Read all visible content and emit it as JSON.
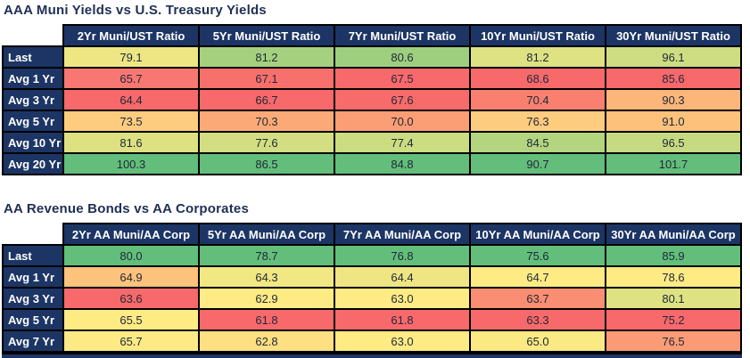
{
  "page": {
    "background": "#FFFFFF",
    "header_bg": "#1C3565",
    "header_text_color": "#FFFFFF",
    "title_color": "#1F2F55",
    "value_text_color": "#1E2838",
    "border_color": "#000000",
    "heat_scale": {
      "low": "#F8696B",
      "mid": "#FFEB84",
      "high": "#63BE7B"
    }
  },
  "tables": [
    {
      "title": "AAA Muni Yields vs U.S. Treasury Yields",
      "columns": [
        "2Yr Muni/UST Ratio",
        "5Yr Muni/UST Ratio",
        "7Yr Muni/UST Ratio",
        "10Yr Muni/UST Ratio",
        "30Yr Muni/UST Ratio"
      ],
      "rows": [
        {
          "label": "Last",
          "cells": [
            {
              "value": "79.1",
              "color": "#EDE683"
            },
            {
              "value": "81.2",
              "color": "#A5D17F"
            },
            {
              "value": "80.6",
              "color": "#9ECF7E"
            },
            {
              "value": "81.2",
              "color": "#DFE282"
            },
            {
              "value": "96.1",
              "color": "#CEDD81"
            }
          ]
        },
        {
          "label": "Avg 1 Yr",
          "cells": [
            {
              "value": "65.7",
              "color": "#F97772"
            },
            {
              "value": "67.1",
              "color": "#F8706C"
            },
            {
              "value": "67.5",
              "color": "#F8696B"
            },
            {
              "value": "68.6",
              "color": "#F8696B"
            },
            {
              "value": "85.6",
              "color": "#F8696B"
            }
          ]
        },
        {
          "label": "Avg 3 Yr",
          "cells": [
            {
              "value": "64.4",
              "color": "#F8696B"
            },
            {
              "value": "66.7",
              "color": "#F8696B"
            },
            {
              "value": "67.6",
              "color": "#F86B6B"
            },
            {
              "value": "70.4",
              "color": "#F9806F"
            },
            {
              "value": "90.3",
              "color": "#FCB67A"
            }
          ]
        },
        {
          "label": "Avg 5 Yr",
          "cells": [
            {
              "value": "73.5",
              "color": "#FDCC7E"
            },
            {
              "value": "70.3",
              "color": "#FBAA77"
            },
            {
              "value": "70.0",
              "color": "#FB9D75"
            },
            {
              "value": "76.3",
              "color": "#FDCC7E"
            },
            {
              "value": "91.0",
              "color": "#FDC17C"
            }
          ]
        },
        {
          "label": "Avg 10 Yr",
          "cells": [
            {
              "value": "81.6",
              "color": "#DDE182"
            },
            {
              "value": "77.6",
              "color": "#D2DE81"
            },
            {
              "value": "77.4",
              "color": "#CBDC81"
            },
            {
              "value": "84.5",
              "color": "#B4D580"
            },
            {
              "value": "96.5",
              "color": "#C6DB81"
            }
          ]
        },
        {
          "label": "Avg 20 Yr",
          "cells": [
            {
              "value": "100.3",
              "color": "#63BE7B"
            },
            {
              "value": "86.5",
              "color": "#63BE7B"
            },
            {
              "value": "84.8",
              "color": "#63BE7B"
            },
            {
              "value": "90.7",
              "color": "#63BE7B"
            },
            {
              "value": "101.7",
              "color": "#63BE7B"
            }
          ]
        }
      ]
    },
    {
      "title": "AA Revenue Bonds vs AA Corporates",
      "columns": [
        "2Yr AA Muni/AA Corp",
        "5Yr AA Muni/AA Corp",
        "7Yr AA Muni/AA Corp",
        "10Yr AA Muni/AA Corp",
        "30Yr AA Muni/AA Corp"
      ],
      "rows": [
        {
          "label": "Last",
          "cells": [
            {
              "value": "80.0",
              "color": "#63BE7B"
            },
            {
              "value": "78.7",
              "color": "#63BE7B"
            },
            {
              "value": "76.8",
              "color": "#63BE7B"
            },
            {
              "value": "75.6",
              "color": "#63BE7B"
            },
            {
              "value": "85.9",
              "color": "#63BE7B"
            }
          ]
        },
        {
          "label": "Avg 1 Yr",
          "cells": [
            {
              "value": "64.9",
              "color": "#FDC27C"
            },
            {
              "value": "64.3",
              "color": "#F1E783"
            },
            {
              "value": "64.4",
              "color": "#EFE683"
            },
            {
              "value": "64.7",
              "color": "#FFEB84"
            },
            {
              "value": "78.6",
              "color": "#FFEB84"
            }
          ]
        },
        {
          "label": "Avg 3 Yr",
          "cells": [
            {
              "value": "63.6",
              "color": "#F8696B"
            },
            {
              "value": "62.9",
              "color": "#FFEB84"
            },
            {
              "value": "63.0",
              "color": "#FFEB84"
            },
            {
              "value": "63.7",
              "color": "#FA8E72"
            },
            {
              "value": "80.1",
              "color": "#DFE282"
            }
          ]
        },
        {
          "label": "Avg 5 Yr",
          "cells": [
            {
              "value": "65.5",
              "color": "#FFEB84"
            },
            {
              "value": "61.8",
              "color": "#F8696B"
            },
            {
              "value": "61.8",
              "color": "#F8696B"
            },
            {
              "value": "63.3",
              "color": "#F8696B"
            },
            {
              "value": "75.2",
              "color": "#F8696B"
            }
          ]
        },
        {
          "label": "Avg 7 Yr",
          "cells": [
            {
              "value": "65.7",
              "color": "#FDEA84"
            },
            {
              "value": "62.8",
              "color": "#FEDF82"
            },
            {
              "value": "63.0",
              "color": "#FFEB84"
            },
            {
              "value": "65.0",
              "color": "#FBEA84"
            },
            {
              "value": "76.5",
              "color": "#FB9B75"
            }
          ]
        }
      ]
    }
  ],
  "chart_data": [
    {
      "type": "heatmap",
      "title": "AAA Muni Yields vs U.S. Treasury Yields",
      "columns": [
        "2Yr Muni/UST Ratio",
        "5Yr Muni/UST Ratio",
        "7Yr Muni/UST Ratio",
        "10Yr Muni/UST Ratio",
        "30Yr Muni/UST Ratio"
      ],
      "row_labels": [
        "Last",
        "Avg 1 Yr",
        "Avg 3 Yr",
        "Avg 5 Yr",
        "Avg 10 Yr",
        "Avg 20 Yr"
      ],
      "values": [
        [
          79.1,
          81.2,
          80.6,
          81.2,
          96.1
        ],
        [
          65.7,
          67.1,
          67.5,
          68.6,
          85.6
        ],
        [
          64.4,
          66.7,
          67.6,
          70.4,
          90.3
        ],
        [
          73.5,
          70.3,
          70.0,
          76.3,
          91.0
        ],
        [
          81.6,
          77.6,
          77.4,
          84.5,
          96.5
        ],
        [
          100.3,
          86.5,
          84.8,
          90.7,
          101.7
        ]
      ],
      "colormap": "red-yellow-green per column (low=red #F8696B, mid=yellow #FFEB84, high=green #63BE7B)"
    },
    {
      "type": "heatmap",
      "title": "AA Revenue Bonds vs AA Corporates",
      "columns": [
        "2Yr AA Muni/AA Corp",
        "5Yr AA Muni/AA Corp",
        "7Yr AA Muni/AA Corp",
        "10Yr AA Muni/AA Corp",
        "30Yr AA Muni/AA Corp"
      ],
      "row_labels": [
        "Last",
        "Avg 1 Yr",
        "Avg 3 Yr",
        "Avg 5 Yr",
        "Avg 7 Yr"
      ],
      "values": [
        [
          80.0,
          78.7,
          76.8,
          75.6,
          85.9
        ],
        [
          64.9,
          64.3,
          64.4,
          64.7,
          78.6
        ],
        [
          63.6,
          62.9,
          63.0,
          63.7,
          80.1
        ],
        [
          65.5,
          61.8,
          61.8,
          63.3,
          75.2
        ],
        [
          65.7,
          62.8,
          63.0,
          65.0,
          76.5
        ]
      ],
      "colormap": "red-yellow-green per column (low=red #F8696B, mid=yellow #FFEB84, high=green #63BE7B)"
    }
  ]
}
